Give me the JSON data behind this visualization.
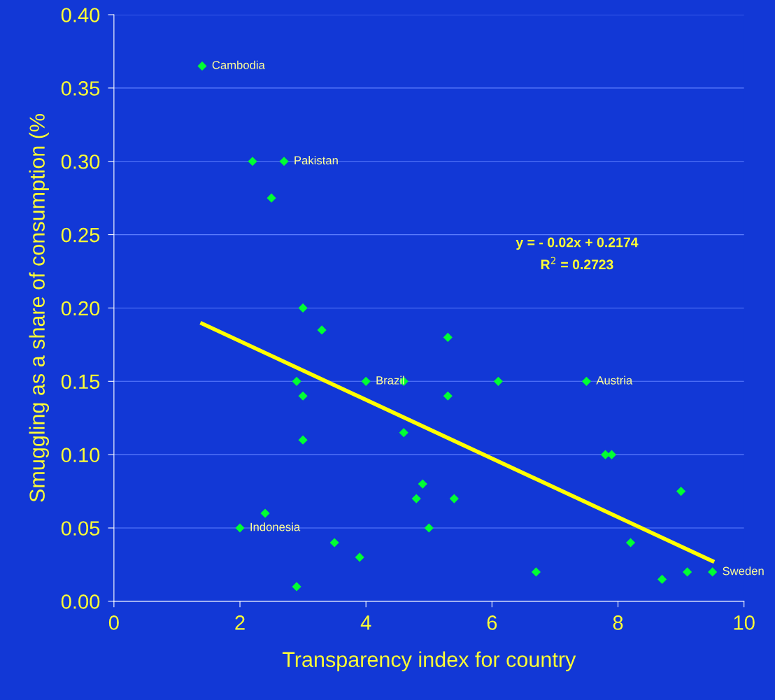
{
  "chart_data": {
    "type": "scatter",
    "xlabel": "Transparency index for country",
    "ylabel": "Smuggling as a share of consumption (%",
    "xlim": [
      0,
      10
    ],
    "xticks": [
      0,
      2,
      4,
      6,
      8,
      10
    ],
    "ylim": [
      0,
      0.4
    ],
    "yticks": [
      {
        "value": 0,
        "label": "0.00"
      },
      {
        "value": 0.05,
        "label": "0.05"
      },
      {
        "value": 0.1,
        "label": "0.10"
      },
      {
        "value": 0.15,
        "label": "0.15"
      },
      {
        "value": 0.2,
        "label": "0.20"
      },
      {
        "value": 0.25,
        "label": "0.25"
      },
      {
        "value": 0.3,
        "label": "0.30"
      },
      {
        "value": 0.35,
        "label": "0.35"
      },
      {
        "value": 0.4,
        "label": "0.40"
      }
    ],
    "grid": "y",
    "marker": "diamond",
    "series": [
      {
        "color": "#00ff33",
        "x": [
          1.4,
          2.2,
          2.7,
          2.5,
          3.0,
          3.3,
          2.9,
          3.0,
          3.0,
          4.0,
          4.6,
          5.3,
          5.3,
          6.1,
          7.5,
          4.6,
          4.9,
          4.8,
          5.4,
          5.0,
          7.8,
          7.9,
          9.0,
          8.2,
          8.7,
          9.1,
          9.5,
          6.7,
          2.4,
          2.0,
          3.5,
          3.9,
          2.9
        ],
        "values": [
          0.365,
          0.3,
          0.3,
          0.275,
          0.2,
          0.185,
          0.15,
          0.14,
          0.11,
          0.15,
          0.15,
          0.18,
          0.14,
          0.15,
          0.15,
          0.115,
          0.08,
          0.07,
          0.07,
          0.05,
          0.1,
          0.1,
          0.075,
          0.04,
          0.015,
          0.02,
          0.02,
          0.02,
          0.06,
          0.05,
          0.04,
          0.03,
          0.01
        ]
      },
      {
        "type": "line",
        "color": "#ffff00",
        "marker": "none",
        "x": [
          1.4,
          9.5
        ],
        "values": [
          0.1894,
          0.0274
        ]
      }
    ],
    "annotations": [
      {
        "text": "Cambodia",
        "x": 1.4,
        "y": 0.365
      },
      {
        "text": "Pakistan",
        "x": 2.7,
        "y": 0.3
      },
      {
        "text": "Brazil",
        "x": 4.0,
        "y": 0.15
      },
      {
        "text": "Austria",
        "x": 7.5,
        "y": 0.15
      },
      {
        "text": "Indonesia",
        "x": 2.0,
        "y": 0.05
      },
      {
        "text": "Sweden",
        "x": 9.5,
        "y": 0.02
      },
      "y = - 0.02x + 0.2174",
      "R$^{2}$ = 0.2723"
    ]
  }
}
